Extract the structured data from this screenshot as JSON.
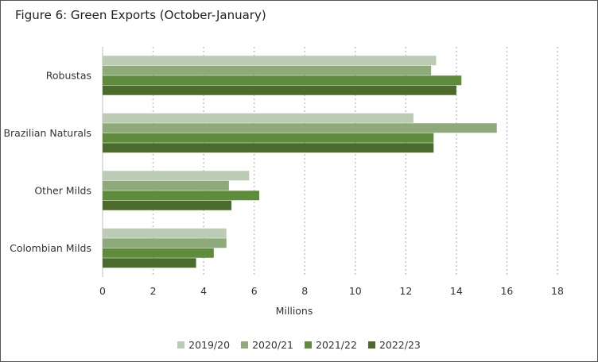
{
  "chart_data": {
    "type": "bar",
    "orientation": "horizontal",
    "title": "Figure 6: Green Exports (October-January)",
    "xlabel": "Millions",
    "ylabel": "",
    "xlim": [
      0,
      18
    ],
    "xticks": [
      0,
      2,
      4,
      6,
      8,
      10,
      12,
      14,
      16,
      18
    ],
    "grid": "vertical dotted",
    "legend_position": "bottom",
    "categories": [
      "Robustas",
      "Brazilian Naturals",
      "Other Milds",
      "Colombian Milds"
    ],
    "series": [
      {
        "name": "2019/20",
        "color": "#bccbb4",
        "values": [
          13.2,
          12.3,
          5.8,
          4.9
        ]
      },
      {
        "name": "2020/21",
        "color": "#8ea97a",
        "values": [
          13.0,
          15.6,
          5.0,
          4.9
        ]
      },
      {
        "name": "2021/22",
        "color": "#5e8b3c",
        "values": [
          14.2,
          13.1,
          6.2,
          4.4
        ]
      },
      {
        "name": "2022/23",
        "color": "#4a6b2c",
        "values": [
          14.0,
          13.1,
          5.1,
          3.7
        ]
      }
    ]
  }
}
